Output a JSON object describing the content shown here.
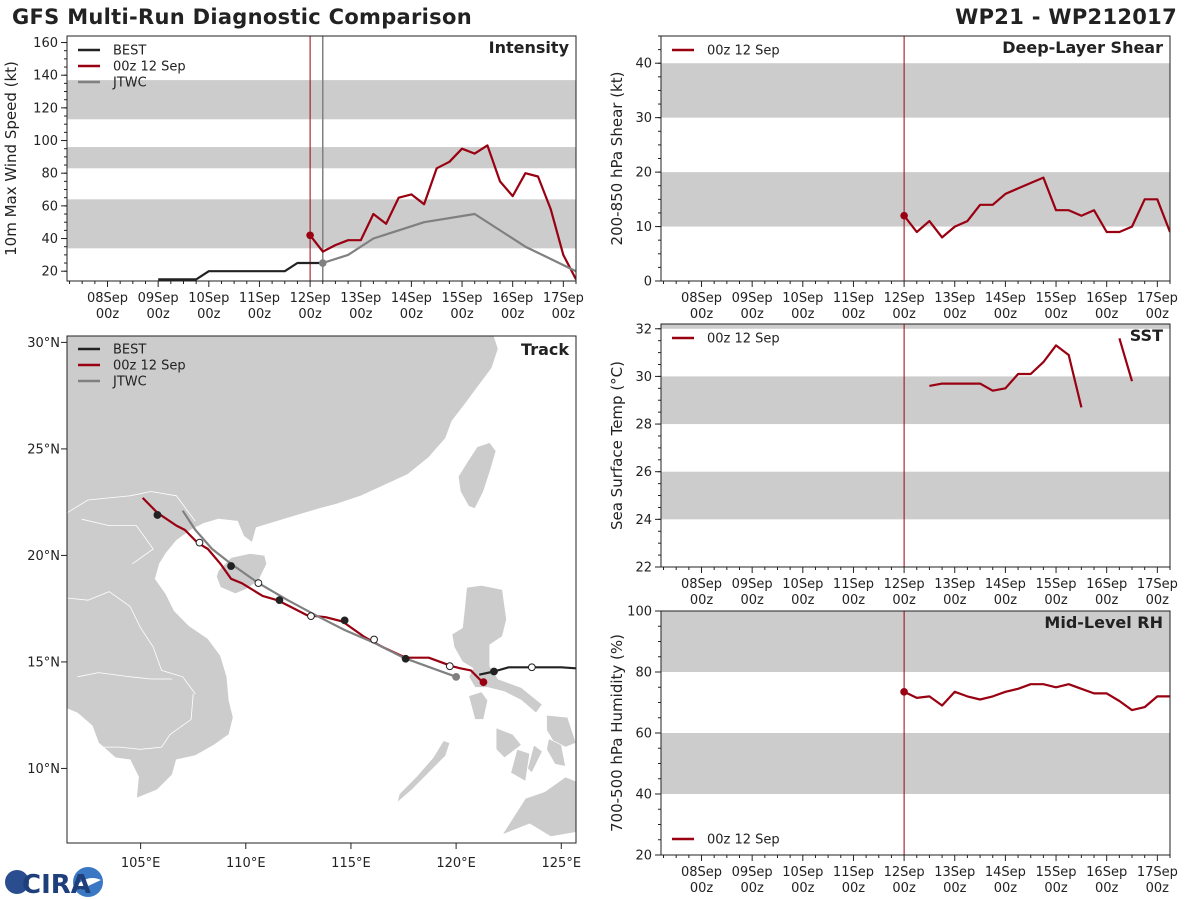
{
  "header": {
    "title": "GFS Multi-Run Diagnostic Comparison",
    "storm_id": "WP21 - WP212017"
  },
  "logo": {
    "text": "CIRA"
  },
  "colors": {
    "best": "#222222",
    "gfs": "#990011",
    "jtwc": "#808080",
    "band": "#cccccc",
    "land": "#cccccc",
    "water": "#ffffff"
  },
  "time_axis": {
    "labels": [
      [
        "08Sep",
        "00z"
      ],
      [
        "09Sep",
        "00z"
      ],
      [
        "10Sep",
        "00z"
      ],
      [
        "11Sep",
        "00z"
      ],
      [
        "12Sep",
        "00z"
      ],
      [
        "13Sep",
        "00z"
      ],
      [
        "14Sep",
        "00z"
      ],
      [
        "15Sep",
        "00z"
      ],
      [
        "16Sep",
        "00z"
      ],
      [
        "17Sep",
        "00z"
      ]
    ],
    "xlim": [
      -4.8,
      5.25
    ],
    "init_line": 0
  },
  "chart_data": [
    {
      "id": "intensity",
      "type": "line",
      "title": "Intensity",
      "ylabel": "10m Max Wind Speed (kt)",
      "ylim": [
        14,
        164
      ],
      "yticks": [
        20,
        40,
        60,
        80,
        100,
        120,
        140,
        160
      ],
      "bands": [
        [
          34,
          64
        ],
        [
          83,
          96
        ],
        [
          113,
          137
        ]
      ],
      "legend": [
        "BEST",
        "00z 12 Sep",
        "JTWC"
      ],
      "extra_vline": 0.25,
      "series": [
        {
          "name": "BEST",
          "color": "best",
          "x": [
            -3,
            -2.25,
            -2,
            -0.5,
            -0.25,
            0.25
          ],
          "y": [
            15,
            15,
            20,
            20,
            25,
            25
          ]
        },
        {
          "name": "00z 12 Sep",
          "color": "gfs",
          "marker_first": true,
          "x": [
            0,
            0.25,
            0.5,
            0.75,
            1,
            1.25,
            1.5,
            1.75,
            2,
            2.25,
            2.5,
            2.75,
            3,
            3.25,
            3.5,
            3.75,
            4,
            4.25,
            4.5,
            4.75,
            5,
            5.25
          ],
          "y": [
            42,
            32,
            36,
            39,
            39,
            55,
            49,
            65,
            67,
            61,
            83,
            87,
            95,
            92,
            97,
            75,
            66,
            80,
            78,
            58,
            30,
            15
          ]
        },
        {
          "name": "JTWC",
          "color": "jtwc",
          "marker_first": true,
          "x": [
            0.25,
            0.75,
            1.25,
            2.25,
            3.25,
            4.25,
            5.25
          ],
          "y": [
            25,
            30,
            40,
            50,
            55,
            35,
            20
          ]
        }
      ]
    },
    {
      "id": "shear",
      "type": "line",
      "title": "Deep-Layer Shear",
      "ylabel": "200-850 hPa Shear (kt)",
      "ylim": [
        0,
        45
      ],
      "yticks": [
        0,
        10,
        20,
        30,
        40
      ],
      "bands": [
        [
          10,
          20
        ],
        [
          30,
          40
        ]
      ],
      "legend": [
        "00z 12 Sep"
      ],
      "series": [
        {
          "name": "00z 12 Sep",
          "color": "gfs",
          "marker_first": true,
          "x": [
            0,
            0.25,
            0.5,
            0.75,
            1,
            1.25,
            1.5,
            1.75,
            2,
            2.25,
            2.5,
            2.75,
            3,
            3.25,
            3.5,
            3.75,
            4,
            4.25,
            4.5,
            4.75,
            5,
            5.25
          ],
          "y": [
            12,
            9,
            11,
            8,
            10,
            11,
            14,
            14,
            16,
            17,
            18,
            19,
            13,
            13,
            12,
            13,
            9,
            9,
            10,
            15,
            15,
            9
          ]
        }
      ]
    },
    {
      "id": "sst",
      "type": "line",
      "title": "SST",
      "ylabel": "Sea Surface Temp (°C)",
      "ylim": [
        22,
        32.2
      ],
      "yticks": [
        22,
        24,
        26,
        28,
        30,
        32
      ],
      "bands": [
        [
          24,
          26
        ],
        [
          28,
          30
        ],
        [
          32,
          32.2
        ]
      ],
      "legend": [
        "00z 12 Sep"
      ],
      "series": [
        {
          "name": "00z 12 Sep",
          "color": "gfs",
          "x": [
            0.5,
            0.75,
            1,
            1.25,
            1.5,
            1.75,
            2,
            2.25,
            2.5,
            2.75,
            3,
            3.25,
            3.5
          ],
          "y": [
            29.6,
            29.7,
            29.7,
            29.7,
            29.7,
            29.4,
            29.5,
            30.1,
            30.1,
            30.6,
            31.3,
            30.9,
            28.7
          ]
        },
        {
          "name": "00z 12 Sep cont.",
          "color": "gfs",
          "x": [
            4.25,
            4.5
          ],
          "y": [
            31.6,
            29.8
          ]
        }
      ]
    },
    {
      "id": "rh",
      "type": "line",
      "title": "Mid-Level RH",
      "ylabel": "700-500 hPa Humidity (%)",
      "ylim": [
        20,
        100
      ],
      "yticks": [
        20,
        40,
        60,
        80,
        100
      ],
      "bands": [
        [
          40,
          60
        ],
        [
          80,
          100
        ]
      ],
      "legend": [
        "00z 12 Sep"
      ],
      "legend_pos": "bottom-left",
      "series": [
        {
          "name": "00z 12 Sep",
          "color": "gfs",
          "marker_first": true,
          "x": [
            0,
            0.25,
            0.5,
            0.75,
            1,
            1.25,
            1.5,
            1.75,
            2,
            2.25,
            2.5,
            2.75,
            3,
            3.25,
            3.5,
            3.75,
            4,
            4.25,
            4.5,
            4.75,
            5,
            5.25
          ],
          "y": [
            73.5,
            71.5,
            72,
            69,
            73.5,
            72,
            71,
            72,
            73.5,
            74.5,
            76,
            76,
            75,
            76,
            74.5,
            73,
            73,
            70.5,
            67.5,
            68.5,
            72,
            72
          ]
        }
      ]
    },
    {
      "id": "track",
      "type": "map",
      "title": "Track",
      "lon_range": [
        101.5,
        125.7
      ],
      "lat_range": [
        6.5,
        30.3
      ],
      "lon_ticks": [
        [
          105,
          "105°E"
        ],
        [
          110,
          "110°E"
        ],
        [
          115,
          "115°E"
        ],
        [
          120,
          "120°E"
        ],
        [
          125,
          "125°E"
        ]
      ],
      "lat_ticks": [
        [
          10,
          "10°N"
        ],
        [
          15,
          "15°N"
        ],
        [
          20,
          "20°N"
        ],
        [
          25,
          "25°N"
        ],
        [
          30,
          "30°N"
        ]
      ],
      "legend": [
        "BEST",
        "00z 12 Sep",
        "JTWC"
      ],
      "tracks": [
        {
          "name": "BEST",
          "color": "best",
          "lon": [
            125.7,
            125,
            123.6,
            122.5,
            121.8,
            121.1
          ],
          "lat": [
            14.7,
            14.75,
            14.75,
            14.75,
            14.55,
            14.4
          ]
        },
        {
          "name": "00z 12 Sep",
          "color": "gfs",
          "lon": [
            121.3,
            120.7,
            120.2,
            119.8,
            118.7,
            117.6,
            116.5,
            115.6,
            114.6,
            113.8,
            112.9,
            112.1,
            111.5,
            110.8,
            109.8,
            109.3,
            108.8,
            108.2,
            107.7,
            107.1,
            106.7,
            105.8,
            105.1
          ],
          "lat": [
            14.0,
            14.6,
            14.7,
            14.8,
            15.2,
            15.2,
            15.7,
            16.2,
            16.9,
            17.1,
            17.2,
            17.6,
            17.9,
            18.1,
            18.7,
            18.9,
            19.6,
            20.3,
            20.6,
            21.2,
            21.4,
            22.0,
            22.7
          ]
        },
        {
          "name": "JTWC",
          "color": "jtwc",
          "lon": [
            120.0,
            118.6,
            117.5,
            116.1,
            114.7,
            113.5,
            112.0,
            110.6,
            109.3,
            108.4,
            107.6,
            107.0
          ],
          "lat": [
            14.3,
            14.8,
            15.2,
            15.9,
            16.5,
            17.1,
            17.9,
            18.7,
            19.6,
            20.3,
            21.2,
            22.1
          ]
        }
      ],
      "markers": [
        {
          "lon": 123.6,
          "lat": 14.75,
          "fill": "#ffffff",
          "stroke": "#222222"
        },
        {
          "lon": 121.8,
          "lat": 14.55,
          "fill": "#222222",
          "stroke": "#222222"
        },
        {
          "lon": 121.3,
          "lat": 14.05,
          "fill": "#990011",
          "stroke": "#990011"
        },
        {
          "lon": 120.0,
          "lat": 14.3,
          "fill": "#808080",
          "stroke": "#808080"
        },
        {
          "lon": 119.7,
          "lat": 14.8,
          "fill": "#ffffff",
          "stroke": "#222222"
        },
        {
          "lon": 117.6,
          "lat": 15.15,
          "fill": "#222222",
          "stroke": "#222222"
        },
        {
          "lon": 116.1,
          "lat": 16.05,
          "fill": "#ffffff",
          "stroke": "#222222"
        },
        {
          "lon": 114.7,
          "lat": 16.95,
          "fill": "#222222",
          "stroke": "#222222"
        },
        {
          "lon": 113.1,
          "lat": 17.15,
          "fill": "#ffffff",
          "stroke": "#222222"
        },
        {
          "lon": 111.6,
          "lat": 17.9,
          "fill": "#222222",
          "stroke": "#222222"
        },
        {
          "lon": 110.6,
          "lat": 18.7,
          "fill": "#ffffff",
          "stroke": "#222222"
        },
        {
          "lon": 109.3,
          "lat": 19.5,
          "fill": "#222222",
          "stroke": "#222222"
        },
        {
          "lon": 107.8,
          "lat": 20.6,
          "fill": "#ffffff",
          "stroke": "#222222"
        },
        {
          "lon": 105.8,
          "lat": 21.9,
          "fill": "#222222",
          "stroke": "#222222"
        }
      ]
    }
  ]
}
